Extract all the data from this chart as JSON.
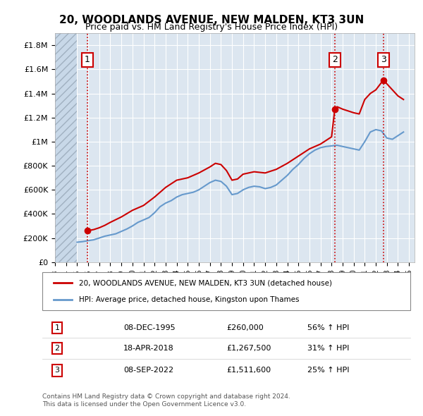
{
  "title": "20, WOODLANDS AVENUE, NEW MALDEN, KT3 3UN",
  "subtitle": "Price paid vs. HM Land Registry's House Price Index (HPI)",
  "background_color": "#dce6f0",
  "plot_bg_color": "#dce6f0",
  "ylim": [
    0,
    1900000
  ],
  "xlim_start": 1993.0,
  "xlim_end": 2025.5,
  "yticks": [
    0,
    200000,
    400000,
    600000,
    800000,
    1000000,
    1200000,
    1400000,
    1600000,
    1800000
  ],
  "ytick_labels": [
    "£0",
    "£200K",
    "£400K",
    "£600K",
    "£800K",
    "£1M",
    "£1.2M",
    "£1.4M",
    "£1.6M",
    "£1.8M"
  ],
  "purchases": [
    {
      "num": 1,
      "date": "08-DEC-1995",
      "year": 1995.93,
      "price": 260000,
      "price_str": "£260,000",
      "hpi_pct": "56% ↑ HPI"
    },
    {
      "num": 2,
      "date": "18-APR-2018",
      "year": 2018.29,
      "price": 1267500,
      "price_str": "£1,267,500",
      "hpi_pct": "31% ↑ HPI"
    },
    {
      "num": 3,
      "date": "08-SEP-2022",
      "year": 2022.69,
      "price": 1511600,
      "price_str": "£1,511,600",
      "hpi_pct": "25% ↑ HPI"
    }
  ],
  "legend_line1": "20, WOODLANDS AVENUE, NEW MALDEN, KT3 3UN (detached house)",
  "legend_line2": "HPI: Average price, detached house, Kingston upon Thames",
  "footer1": "Contains HM Land Registry data © Crown copyright and database right 2024.",
  "footer2": "This data is licensed under the Open Government Licence v3.0.",
  "red_color": "#cc0000",
  "blue_color": "#6699cc",
  "hpi_data_x": [
    1995.0,
    1995.5,
    1996.0,
    1996.5,
    1997.0,
    1997.5,
    1998.0,
    1998.5,
    1999.0,
    1999.5,
    2000.0,
    2000.5,
    2001.0,
    2001.5,
    2002.0,
    2002.5,
    2003.0,
    2003.5,
    2004.0,
    2004.5,
    2005.0,
    2005.5,
    2006.0,
    2006.5,
    2007.0,
    2007.5,
    2008.0,
    2008.5,
    2009.0,
    2009.5,
    2010.0,
    2010.5,
    2011.0,
    2011.5,
    2012.0,
    2012.5,
    2013.0,
    2013.5,
    2014.0,
    2014.5,
    2015.0,
    2015.5,
    2016.0,
    2016.5,
    2017.0,
    2017.5,
    2018.0,
    2018.5,
    2019.0,
    2019.5,
    2020.0,
    2020.5,
    2021.0,
    2021.5,
    2022.0,
    2022.5,
    2023.0,
    2023.5,
    2024.0,
    2024.5
  ],
  "hpi_data_y": [
    165000,
    170000,
    178000,
    185000,
    200000,
    215000,
    225000,
    235000,
    255000,
    275000,
    300000,
    330000,
    350000,
    370000,
    410000,
    460000,
    490000,
    510000,
    540000,
    560000,
    570000,
    580000,
    600000,
    630000,
    660000,
    680000,
    670000,
    630000,
    560000,
    570000,
    600000,
    620000,
    630000,
    625000,
    610000,
    620000,
    640000,
    680000,
    720000,
    770000,
    810000,
    860000,
    900000,
    930000,
    950000,
    960000,
    965000,
    970000,
    960000,
    950000,
    940000,
    930000,
    1000000,
    1080000,
    1100000,
    1090000,
    1030000,
    1020000,
    1050000,
    1080000
  ],
  "price_line_x": [
    1995.93,
    1996.5,
    1997.0,
    1997.5,
    1998.0,
    1999.0,
    2000.0,
    2001.0,
    2002.0,
    2003.0,
    2004.0,
    2005.0,
    2006.0,
    2007.0,
    2007.5,
    2008.0,
    2008.5,
    2009.0,
    2009.5,
    2010.0,
    2011.0,
    2012.0,
    2013.0,
    2014.0,
    2015.0,
    2016.0,
    2017.0,
    2017.5,
    2018.0,
    2018.29,
    2018.5,
    2019.0,
    2019.5,
    2020.0,
    2020.5,
    2021.0,
    2021.5,
    2022.0,
    2022.5,
    2022.69,
    2023.0,
    2023.5,
    2024.0,
    2024.5
  ],
  "price_line_y": [
    260000,
    270000,
    285000,
    305000,
    330000,
    375000,
    430000,
    470000,
    540000,
    620000,
    680000,
    700000,
    740000,
    790000,
    820000,
    810000,
    760000,
    680000,
    690000,
    730000,
    750000,
    740000,
    770000,
    820000,
    880000,
    940000,
    980000,
    1010000,
    1040000,
    1267500,
    1290000,
    1270000,
    1255000,
    1240000,
    1230000,
    1350000,
    1400000,
    1430000,
    1490000,
    1511600,
    1480000,
    1430000,
    1380000,
    1350000
  ]
}
